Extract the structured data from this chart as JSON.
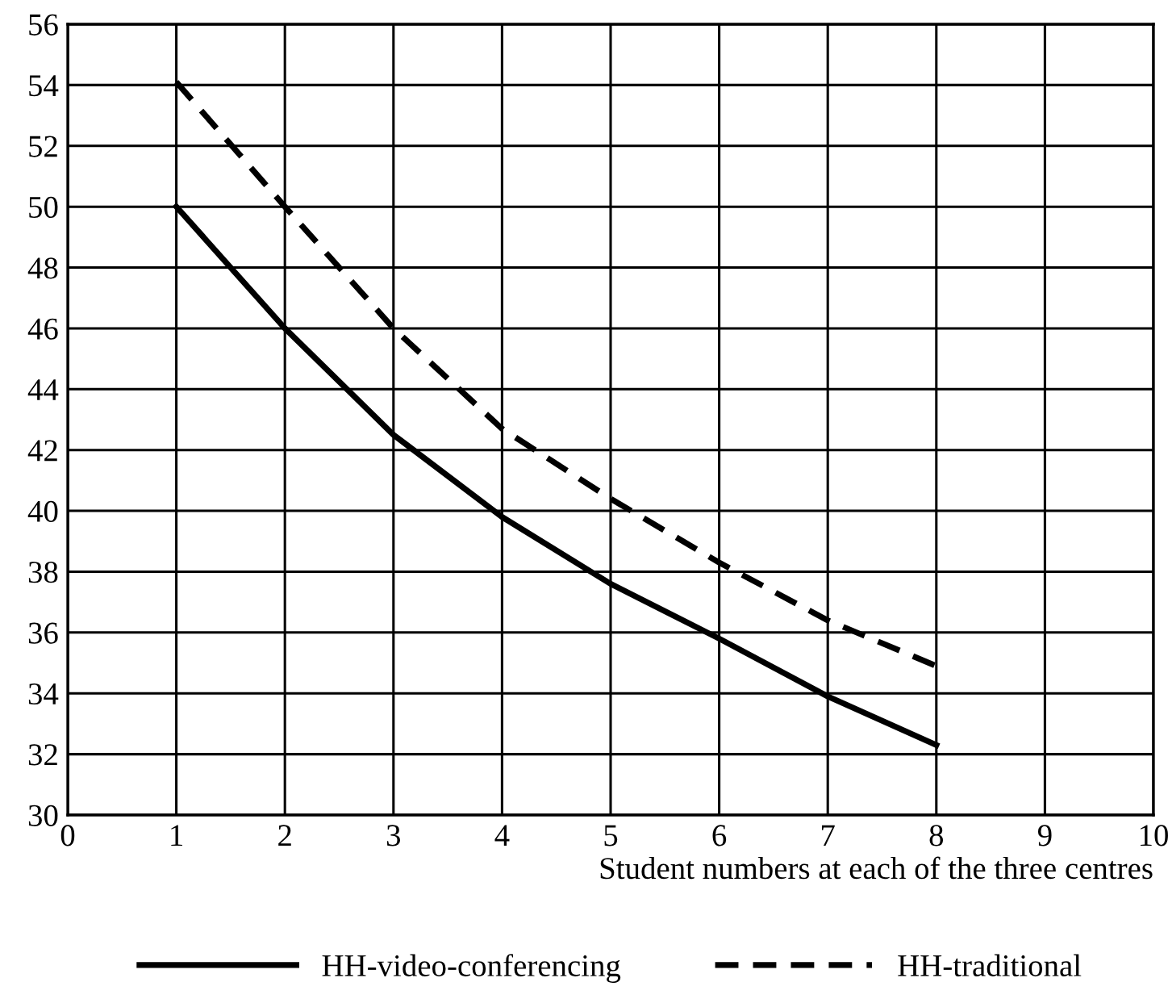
{
  "chart_data": {
    "type": "line",
    "xlabel": "Student numbers at each of the three centres",
    "x": [
      1,
      2,
      3,
      4,
      5,
      6,
      7,
      8
    ],
    "series": [
      {
        "name": "HH-video-conferencing",
        "color": "#000000",
        "line_style": "solid",
        "values": [
          50,
          46,
          42.5,
          39.8,
          37.6,
          35.8,
          33.9,
          32.3
        ]
      },
      {
        "name": "HH-traditional",
        "color": "#000000",
        "line_style": "dashed",
        "values": [
          54.1,
          50,
          46,
          42.7,
          40.4,
          38.3,
          36.4,
          34.9
        ]
      }
    ],
    "xlim": [
      0,
      10
    ],
    "xticks": [
      0,
      1,
      2,
      3,
      4,
      5,
      6,
      7,
      8,
      9,
      10
    ],
    "ylim": [
      30,
      56
    ],
    "yticks": [
      30,
      32,
      34,
      36,
      38,
      40,
      42,
      44,
      46,
      48,
      50,
      52,
      54,
      56
    ],
    "grid": true,
    "legend": "bottom",
    "marker": "none"
  }
}
